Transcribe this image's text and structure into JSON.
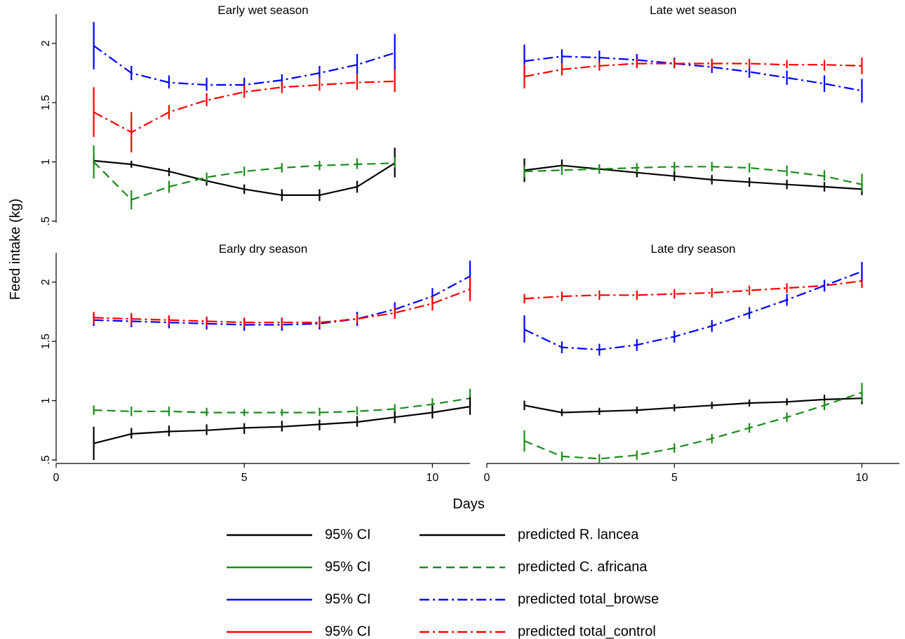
{
  "chart_data": {
    "type": "line",
    "ylabel": "Feed intake (kg)",
    "xlabel": "Days",
    "xlim": [
      0,
      11
    ],
    "ylim": [
      0.5,
      2.2
    ],
    "xticks": [
      "0",
      "5",
      "10"
    ],
    "yticks": [
      ".5",
      "1",
      "1.5",
      "2"
    ],
    "ytick_values": [
      0.5,
      1,
      1.5,
      2
    ],
    "xtick_values": [
      0,
      5,
      10
    ],
    "grid": false,
    "legend_position": "bottom",
    "colors": {
      "r_lancea": "#000000",
      "c_africana": "#1a8c1a",
      "total_browse": "#0000ff",
      "total_control": "#ff0000",
      "axis": "#000000"
    },
    "legend": [
      {
        "label": "95% CI",
        "series": "r_lancea",
        "style": "solid"
      },
      {
        "label": "predicted R. lancea",
        "series": "r_lancea",
        "style": "solid"
      },
      {
        "label": "95% CI",
        "series": "c_africana",
        "style": "solid"
      },
      {
        "label": "predicted C. africana",
        "series": "c_africana",
        "style": "dashed"
      },
      {
        "label": "95% CI",
        "series": "total_browse",
        "style": "solid"
      },
      {
        "label": "predicted total_browse",
        "series": "total_browse",
        "style": "dashdot"
      },
      {
        "label": "95% CI",
        "series": "total_control",
        "style": "solid"
      },
      {
        "label": "predicted total_control",
        "series": "total_control",
        "style": "dashdot"
      }
    ],
    "panels": [
      {
        "title": "Early wet season",
        "show_x_axis": false,
        "series": [
          {
            "key": "total_browse",
            "style": "dashdot",
            "x": [
              1,
              2,
              3,
              4,
              5,
              6,
              7,
              8,
              9
            ],
            "y": [
              1.98,
              1.75,
              1.67,
              1.65,
              1.65,
              1.69,
              1.75,
              1.82,
              1.92
            ],
            "ci_lo": [
              1.78,
              1.69,
              1.62,
              1.6,
              1.6,
              1.64,
              1.69,
              1.74,
              1.77
            ],
            "ci_hi": [
              2.18,
              1.81,
              1.73,
              1.71,
              1.71,
              1.74,
              1.81,
              1.91,
              2.08
            ]
          },
          {
            "key": "total_control",
            "style": "dashdot",
            "x": [
              1,
              2,
              3,
              4,
              5,
              6,
              7,
              8,
              9
            ],
            "y": [
              1.42,
              1.25,
              1.42,
              1.52,
              1.59,
              1.63,
              1.65,
              1.67,
              1.68
            ],
            "ci_lo": [
              1.21,
              1.08,
              1.36,
              1.47,
              1.54,
              1.58,
              1.6,
              1.61,
              1.59
            ],
            "ci_hi": [
              1.63,
              1.42,
              1.48,
              1.58,
              1.65,
              1.68,
              1.71,
              1.74,
              1.78
            ]
          },
          {
            "key": "r_lancea",
            "style": "solid",
            "x": [
              1,
              2,
              3,
              4,
              5,
              6,
              7,
              8,
              9
            ],
            "y": [
              1.01,
              0.98,
              0.92,
              0.84,
              0.77,
              0.72,
              0.72,
              0.79,
              0.99
            ],
            "ci_lo": [
              0.97,
              0.95,
              0.88,
              0.8,
              0.73,
              0.67,
              0.67,
              0.74,
              0.87
            ],
            "ci_hi": [
              1.05,
              1.01,
              0.95,
              0.87,
              0.81,
              0.77,
              0.77,
              0.84,
              1.12
            ]
          },
          {
            "key": "c_africana",
            "style": "dashed",
            "x": [
              1,
              2,
              3,
              4,
              5,
              6,
              7,
              8,
              9
            ],
            "y": [
              1.0,
              0.68,
              0.79,
              0.87,
              0.92,
              0.95,
              0.97,
              0.98,
              0.99
            ],
            "ci_lo": [
              0.86,
              0.6,
              0.74,
              0.83,
              0.88,
              0.91,
              0.93,
              0.94,
              0.95
            ],
            "ci_hi": [
              1.14,
              0.76,
              0.84,
              0.91,
              0.96,
              0.99,
              1.01,
              1.03,
              1.04
            ]
          }
        ]
      },
      {
        "title": "Late wet season",
        "show_x_axis": false,
        "series": [
          {
            "key": "total_browse",
            "style": "dashdot",
            "x": [
              1,
              2,
              3,
              4,
              5,
              6,
              7,
              8,
              9,
              10
            ],
            "y": [
              1.85,
              1.89,
              1.88,
              1.86,
              1.83,
              1.8,
              1.76,
              1.71,
              1.66,
              1.6
            ],
            "ci_lo": [
              1.71,
              1.83,
              1.83,
              1.81,
              1.79,
              1.75,
              1.71,
              1.65,
              1.59,
              1.5
            ],
            "ci_hi": [
              1.99,
              1.95,
              1.94,
              1.91,
              1.88,
              1.85,
              1.81,
              1.77,
              1.73,
              1.7
            ]
          },
          {
            "key": "total_control",
            "style": "dashdot",
            "x": [
              1,
              2,
              3,
              4,
              5,
              6,
              7,
              8,
              9,
              10
            ],
            "y": [
              1.72,
              1.78,
              1.81,
              1.83,
              1.83,
              1.83,
              1.83,
              1.82,
              1.82,
              1.81
            ],
            "ci_lo": [
              1.62,
              1.73,
              1.77,
              1.79,
              1.79,
              1.79,
              1.79,
              1.79,
              1.77,
              1.74
            ],
            "ci_hi": [
              1.82,
              1.83,
              1.85,
              1.87,
              1.87,
              1.87,
              1.87,
              1.86,
              1.86,
              1.88
            ]
          },
          {
            "key": "r_lancea",
            "style": "solid",
            "x": [
              1,
              2,
              3,
              4,
              5,
              6,
              7,
              8,
              9,
              10
            ],
            "y": [
              0.93,
              0.97,
              0.94,
              0.91,
              0.88,
              0.85,
              0.83,
              0.81,
              0.79,
              0.77
            ],
            "ci_lo": [
              0.83,
              0.92,
              0.9,
              0.87,
              0.84,
              0.81,
              0.79,
              0.77,
              0.75,
              0.72
            ],
            "ci_hi": [
              1.03,
              1.02,
              0.98,
              0.95,
              0.92,
              0.89,
              0.87,
              0.85,
              0.83,
              0.82
            ]
          },
          {
            "key": "c_africana",
            "style": "dashed",
            "x": [
              1,
              2,
              3,
              4,
              5,
              6,
              7,
              8,
              9,
              10
            ],
            "y": [
              0.92,
              0.93,
              0.94,
              0.95,
              0.96,
              0.96,
              0.95,
              0.92,
              0.88,
              0.81
            ],
            "ci_lo": [
              0.87,
              0.89,
              0.9,
              0.91,
              0.92,
              0.92,
              0.91,
              0.88,
              0.84,
              0.75
            ],
            "ci_hi": [
              0.97,
              0.97,
              0.98,
              0.99,
              1.0,
              1.0,
              0.99,
              0.97,
              0.93,
              0.9
            ]
          }
        ]
      },
      {
        "title": "Early dry season",
        "show_x_axis": true,
        "series": [
          {
            "key": "total_browse",
            "style": "dashdot",
            "x": [
              1,
              2,
              3,
              4,
              5,
              6,
              7,
              8,
              9,
              10,
              11
            ],
            "y": [
              1.68,
              1.67,
              1.66,
              1.65,
              1.64,
              1.64,
              1.65,
              1.69,
              1.77,
              1.88,
              2.05
            ],
            "ci_lo": [
              1.63,
              1.62,
              1.61,
              1.6,
              1.59,
              1.59,
              1.6,
              1.63,
              1.71,
              1.81,
              1.93
            ],
            "ci_hi": [
              1.73,
              1.72,
              1.71,
              1.7,
              1.69,
              1.7,
              1.71,
              1.75,
              1.83,
              1.95,
              2.18
            ]
          },
          {
            "key": "total_control",
            "style": "dashdot",
            "x": [
              1,
              2,
              3,
              4,
              5,
              6,
              7,
              8,
              9,
              10,
              11
            ],
            "y": [
              1.7,
              1.69,
              1.68,
              1.67,
              1.66,
              1.66,
              1.66,
              1.69,
              1.74,
              1.82,
              1.94
            ],
            "ci_lo": [
              1.65,
              1.64,
              1.64,
              1.63,
              1.62,
              1.62,
              1.62,
              1.65,
              1.69,
              1.76,
              1.84
            ],
            "ci_hi": [
              1.75,
              1.74,
              1.72,
              1.71,
              1.7,
              1.7,
              1.7,
              1.73,
              1.79,
              1.88,
              2.04
            ]
          },
          {
            "key": "c_africana",
            "style": "dashed",
            "x": [
              1,
              2,
              3,
              4,
              5,
              6,
              7,
              8,
              9,
              10,
              11
            ],
            "y": [
              0.92,
              0.91,
              0.91,
              0.9,
              0.9,
              0.9,
              0.9,
              0.91,
              0.93,
              0.97,
              1.02
            ],
            "ci_lo": [
              0.88,
              0.87,
              0.87,
              0.87,
              0.87,
              0.87,
              0.87,
              0.88,
              0.89,
              0.92,
              0.95
            ],
            "ci_hi": [
              0.96,
              0.95,
              0.95,
              0.94,
              0.93,
              0.93,
              0.94,
              0.95,
              0.97,
              1.02,
              1.1
            ]
          },
          {
            "key": "r_lancea",
            "style": "solid",
            "x": [
              1,
              2,
              3,
              4,
              5,
              6,
              7,
              8,
              9,
              10,
              11
            ],
            "y": [
              0.64,
              0.72,
              0.74,
              0.75,
              0.77,
              0.78,
              0.8,
              0.82,
              0.86,
              0.9,
              0.95
            ],
            "ci_lo": [
              0.5,
              0.68,
              0.7,
              0.71,
              0.72,
              0.74,
              0.75,
              0.78,
              0.81,
              0.85,
              0.88
            ],
            "ci_hi": [
              0.78,
              0.77,
              0.79,
              0.8,
              0.81,
              0.83,
              0.84,
              0.87,
              0.91,
              0.96,
              1.03
            ]
          }
        ]
      },
      {
        "title": "Late dry season",
        "show_x_axis": true,
        "series": [
          {
            "key": "total_control",
            "style": "dashdot",
            "x": [
              1,
              2,
              3,
              4,
              5,
              6,
              7,
              8,
              9,
              10
            ],
            "y": [
              1.86,
              1.88,
              1.89,
              1.89,
              1.9,
              1.91,
              1.93,
              1.95,
              1.97,
              2.01
            ],
            "ci_lo": [
              1.82,
              1.84,
              1.85,
              1.85,
              1.86,
              1.87,
              1.89,
              1.91,
              1.93,
              1.95
            ],
            "ci_hi": [
              1.9,
              1.92,
              1.93,
              1.93,
              1.94,
              1.95,
              1.97,
              1.99,
              2.01,
              2.07
            ]
          },
          {
            "key": "total_browse",
            "style": "dashdot",
            "x": [
              1,
              2,
              3,
              4,
              5,
              6,
              7,
              8,
              9,
              10
            ],
            "y": [
              1.6,
              1.45,
              1.43,
              1.47,
              1.54,
              1.63,
              1.74,
              1.85,
              1.97,
              2.09
            ],
            "ci_lo": [
              1.49,
              1.4,
              1.38,
              1.42,
              1.49,
              1.58,
              1.69,
              1.8,
              1.92,
              2.01
            ],
            "ci_hi": [
              1.72,
              1.5,
              1.48,
              1.52,
              1.59,
              1.68,
              1.79,
              1.9,
              2.02,
              2.17
            ]
          },
          {
            "key": "r_lancea",
            "style": "solid",
            "x": [
              1,
              2,
              3,
              4,
              5,
              6,
              7,
              8,
              9,
              10
            ],
            "y": [
              0.96,
              0.9,
              0.91,
              0.92,
              0.94,
              0.96,
              0.98,
              0.99,
              1.01,
              1.02
            ],
            "ci_lo": [
              0.92,
              0.87,
              0.88,
              0.89,
              0.91,
              0.93,
              0.95,
              0.96,
              0.97,
              0.97
            ],
            "ci_hi": [
              1.0,
              0.93,
              0.94,
              0.95,
              0.97,
              0.99,
              1.01,
              1.02,
              1.05,
              1.07
            ]
          },
          {
            "key": "c_africana",
            "style": "dashed",
            "x": [
              1,
              2,
              3,
              4,
              5,
              6,
              7,
              8,
              9,
              10
            ],
            "y": [
              0.66,
              0.53,
              0.51,
              0.54,
              0.6,
              0.68,
              0.77,
              0.86,
              0.96,
              1.07
            ],
            "ci_lo": [
              0.57,
              0.49,
              0.47,
              0.5,
              0.56,
              0.64,
              0.73,
              0.82,
              0.92,
              0.99
            ],
            "ci_hi": [
              0.75,
              0.57,
              0.55,
              0.58,
              0.64,
              0.72,
              0.81,
              0.9,
              1.0,
              1.15
            ]
          }
        ]
      }
    ]
  }
}
